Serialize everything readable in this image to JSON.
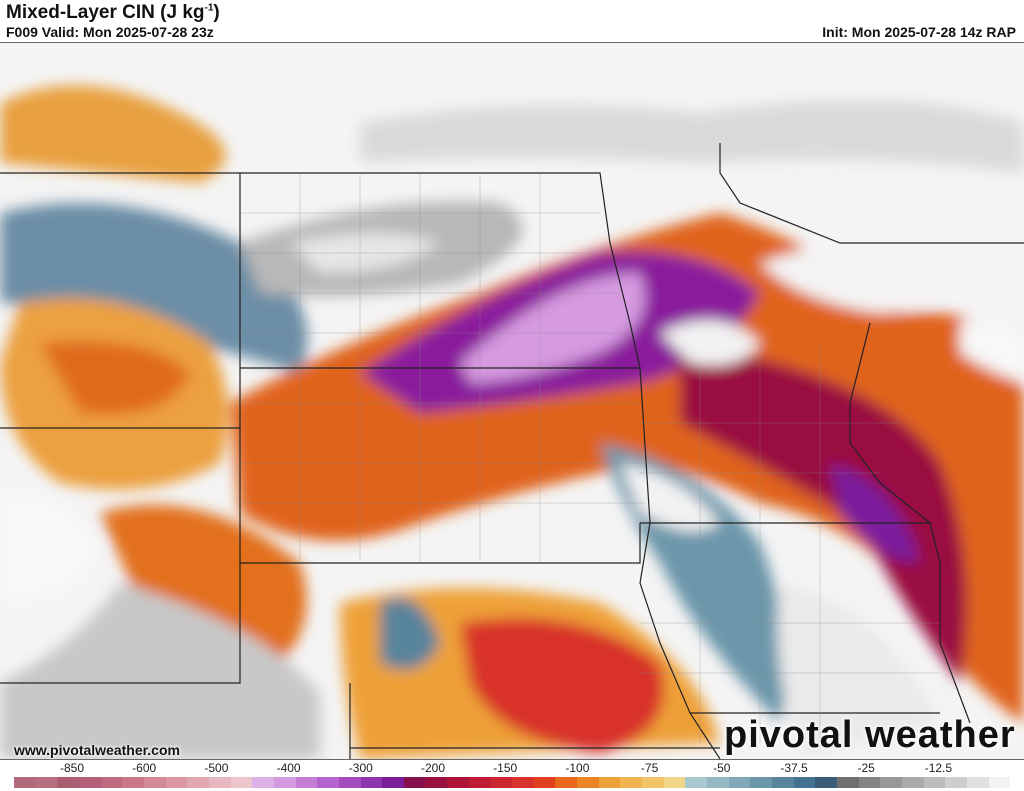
{
  "header": {
    "title": "Mixed-Layer CIN (J kg",
    "title_sup": "-1",
    "title_end": ")",
    "valid": "F009 Valid: Mon 2025-07-28 23z",
    "init": "Init: Mon 2025-07-28 14z RAP"
  },
  "footer": {
    "url": "www.pivotalweather.com",
    "brand": "pivotal weather"
  },
  "colorbar": {
    "ticks": [
      "-850",
      "-600",
      "-500",
      "-400",
      "-300",
      "-200",
      "-150",
      "-100",
      "-75",
      "-50",
      "-37.5",
      "-25",
      "-12.5"
    ],
    "colors": [
      "#b06a7c",
      "#b86f80",
      "#a95e72",
      "#b35f78",
      "#be6a80",
      "#c87888",
      "#d28896",
      "#db98a4",
      "#e2a8b2",
      "#e8b8c0",
      "#edc6cc",
      "#ddb0e8",
      "#d49ae0",
      "#c47ed6",
      "#b464cc",
      "#a24cbe",
      "#8e34ae",
      "#7a1e9c",
      "#86104c",
      "#9a1040",
      "#ac1438",
      "#be1c34",
      "#cc2630",
      "#d8322c",
      "#e04020",
      "#e8681c",
      "#ec8424",
      "#eea038",
      "#f0b450",
      "#f2c468",
      "#f2d486",
      "#a8c8d0",
      "#94b8c4",
      "#80a8b8",
      "#6c96aa",
      "#58849c",
      "#447290",
      "#3a5e7a",
      "#707070",
      "#848484",
      "#989898",
      "#aaaaaa",
      "#bcbcbc",
      "#cecece",
      "#e0e0e0",
      "#f2f2f2"
    ]
  }
}
